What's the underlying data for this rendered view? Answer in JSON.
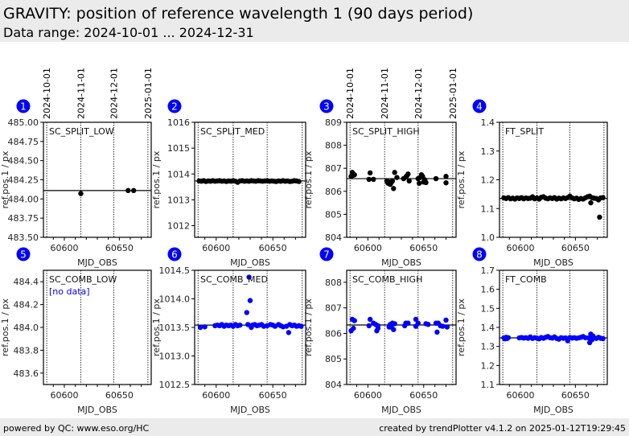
{
  "header": {
    "title": "GRAVITY: position of reference wavelength 1 (90 days period)",
    "subtitle": "Data range: 2024-10-01 ... 2024-12-31"
  },
  "footer": {
    "left": "powered by QC: www.eso.org/HC",
    "right": "created by trendPlotter v4.1.2 on 2025-01-12T19:29:45"
  },
  "colors": {
    "badge": "#0000ff",
    "split_points": "#000000",
    "comb_points": "#0000ff",
    "no_data_text": "#0000ff",
    "header_bg": "#ebebeb"
  },
  "chart_data": [
    {
      "type": "scatter",
      "badge": "1",
      "label": "SC_SPLIT_LOW",
      "xlabel": "MJD_OBS",
      "ylabel": "ref.pos.1 / px",
      "xlim": [
        60581,
        60679
      ],
      "ylim": [
        483.5,
        485.0
      ],
      "yticks": [
        "483.50",
        "483.75",
        "484.00",
        "484.25",
        "484.50",
        "484.75",
        "485.00"
      ],
      "xticks": [
        "60600",
        "60650"
      ],
      "date_ticks": [
        "2024-10-01",
        "2024-11-01",
        "2024-12-01",
        "2025-01-01"
      ],
      "date_mjd": [
        60584,
        60615,
        60645,
        60676
      ],
      "median": 484.11,
      "color": "#000000",
      "points": [
        [
          60615,
          484.07
        ],
        [
          60658,
          484.11
        ],
        [
          60663,
          484.11
        ]
      ]
    },
    {
      "type": "scatter",
      "badge": "2",
      "label": "SC_SPLIT_MED",
      "xlabel": "MJD_OBS",
      "ylabel": "ref.pos.1 / px",
      "xlim": [
        60581,
        60679
      ],
      "ylim": [
        1011.55,
        1016
      ],
      "yticks": [
        "1012",
        "1013",
        "1014",
        "1015",
        "1016"
      ],
      "xticks": [
        "60600",
        "60650"
      ],
      "date_mjd": [
        60584,
        60615,
        60645,
        60676
      ],
      "median": 1013.73,
      "color": "#000000",
      "points": [
        [
          60585,
          1013.73
        ],
        [
          60587,
          1013.72
        ],
        [
          60589,
          1013.74
        ],
        [
          60591,
          1013.71
        ],
        [
          60593,
          1013.73
        ],
        [
          60595,
          1013.72
        ],
        [
          60597,
          1013.74
        ],
        [
          60599,
          1013.72
        ],
        [
          60601,
          1013.73
        ],
        [
          60603,
          1013.74
        ],
        [
          60605,
          1013.72
        ],
        [
          60607,
          1013.73
        ],
        [
          60609,
          1013.71
        ],
        [
          60611,
          1013.73
        ],
        [
          60613,
          1013.72
        ],
        [
          60615,
          1013.74
        ],
        [
          60617,
          1013.72
        ],
        [
          60619,
          1013.68
        ],
        [
          60621,
          1013.73
        ],
        [
          60623,
          1013.74
        ],
        [
          60625,
          1013.72
        ],
        [
          60627,
          1013.73
        ],
        [
          60629,
          1013.72
        ],
        [
          60631,
          1013.74
        ],
        [
          60633,
          1013.73
        ],
        [
          60635,
          1013.72
        ],
        [
          60637,
          1013.74
        ],
        [
          60639,
          1013.73
        ],
        [
          60641,
          1013.72
        ],
        [
          60643,
          1013.73
        ],
        [
          60645,
          1013.74
        ],
        [
          60647,
          1013.72
        ],
        [
          60649,
          1013.73
        ],
        [
          60651,
          1013.72
        ],
        [
          60653,
          1013.71
        ],
        [
          60655,
          1013.73
        ],
        [
          60657,
          1013.72
        ],
        [
          60659,
          1013.74
        ],
        [
          60661,
          1013.72
        ],
        [
          60663,
          1013.73
        ],
        [
          60665,
          1013.71
        ],
        [
          60667,
          1013.72
        ],
        [
          60669,
          1013.74
        ],
        [
          60671,
          1013.73
        ],
        [
          60673,
          1013.71
        ]
      ]
    },
    {
      "type": "scatter",
      "badge": "3",
      "label": "SC_SPLIT_HIGH",
      "xlabel": "MJD_OBS",
      "ylabel": "ref.pos.1 / px",
      "xlim": [
        60581,
        60679
      ],
      "ylim": [
        804,
        809
      ],
      "yticks": [
        "804",
        "805",
        "806",
        "807",
        "808",
        "809"
      ],
      "xticks": [
        "60600",
        "60650"
      ],
      "date_ticks": [
        "2024-10-01",
        "2024-11-01",
        "2024-12-01",
        "2025-01-01"
      ],
      "date_mjd": [
        60584,
        60615,
        60645,
        60676
      ],
      "median": 806.55,
      "color": "#000000",
      "points": [
        [
          60585,
          806.65
        ],
        [
          60586,
          806.82
        ],
        [
          60587,
          806.7
        ],
        [
          60588,
          806.72
        ],
        [
          60601,
          806.52
        ],
        [
          60602,
          806.8
        ],
        [
          60605,
          806.52
        ],
        [
          60617,
          806.45
        ],
        [
          60618,
          806.35
        ],
        [
          60619,
          806.4
        ],
        [
          60620,
          806.3
        ],
        [
          60621,
          806.38
        ],
        [
          60622,
          806.45
        ],
        [
          60623,
          806.12
        ],
        [
          60624,
          806.82
        ],
        [
          60626,
          806.6
        ],
        [
          60632,
          806.55
        ],
        [
          60634,
          806.62
        ],
        [
          60635,
          806.68
        ],
        [
          60636,
          806.75
        ],
        [
          60637,
          806.45
        ],
        [
          60645,
          806.55
        ],
        [
          60646,
          806.35
        ],
        [
          60647,
          806.6
        ],
        [
          60648,
          806.72
        ],
        [
          60649,
          806.65
        ],
        [
          60650,
          806.4
        ],
        [
          60651,
          806.5
        ],
        [
          60652,
          806.38
        ],
        [
          60661,
          806.55
        ],
        [
          60670,
          806.65
        ],
        [
          60670,
          806.37
        ]
      ]
    },
    {
      "type": "scatter",
      "badge": "4",
      "label": "FT_SPLIT",
      "xlabel": "MJD_OBS",
      "ylabel": "ref.pos.1 / px",
      "xlim": [
        60581,
        60679
      ],
      "ylim": [
        1.0,
        1.4
      ],
      "yticks": [
        "1.0",
        "1.1",
        "1.2",
        "1.3",
        "1.4"
      ],
      "xticks": [
        "60600",
        "60650"
      ],
      "date_mjd": [
        60584,
        60615,
        60645,
        60676
      ],
      "median": 1.135,
      "color": "#000000",
      "points": [
        [
          60585,
          1.137
        ],
        [
          60587,
          1.135
        ],
        [
          60589,
          1.138
        ],
        [
          60591,
          1.134
        ],
        [
          60593,
          1.136
        ],
        [
          60595,
          1.133
        ],
        [
          60597,
          1.137
        ],
        [
          60599,
          1.135
        ],
        [
          60601,
          1.138
        ],
        [
          60603,
          1.134
        ],
        [
          60605,
          1.137
        ],
        [
          60607,
          1.135
        ],
        [
          60609,
          1.136
        ],
        [
          60611,
          1.141
        ],
        [
          60613,
          1.134
        ],
        [
          60615,
          1.137
        ],
        [
          60617,
          1.133
        ],
        [
          60619,
          1.139
        ],
        [
          60621,
          1.141
        ],
        [
          60623,
          1.136
        ],
        [
          60625,
          1.134
        ],
        [
          60627,
          1.137
        ],
        [
          60629,
          1.135
        ],
        [
          60631,
          1.138
        ],
        [
          60633,
          1.133
        ],
        [
          60635,
          1.136
        ],
        [
          60637,
          1.134
        ],
        [
          60639,
          1.137
        ],
        [
          60641,
          1.135
        ],
        [
          60643,
          1.138
        ],
        [
          60645,
          1.143
        ],
        [
          60647,
          1.137
        ],
        [
          60649,
          1.134
        ],
        [
          60651,
          1.136
        ],
        [
          60653,
          1.132
        ],
        [
          60655,
          1.135
        ],
        [
          60657,
          1.133
        ],
        [
          60659,
          1.137
        ],
        [
          60661,
          1.141
        ],
        [
          60663,
          1.143
        ],
        [
          60664,
          1.12
        ],
        [
          60665,
          1.138
        ],
        [
          60667,
          1.136
        ],
        [
          60669,
          1.135
        ],
        [
          60671,
          1.13
        ],
        [
          60672,
          1.07
        ],
        [
          60673,
          1.137
        ],
        [
          60675,
          1.138
        ]
      ]
    },
    {
      "type": "scatter",
      "badge": "5",
      "label": "SC_COMB_LOW",
      "no_data": "[no data]",
      "xlabel": "MJD_OBS",
      "ylabel": "ref.pos.1 / px",
      "xlim": [
        60581,
        60679
      ],
      "ylim": [
        483.5,
        484.5
      ],
      "yticks": [
        "483.6",
        "483.8",
        "484.0",
        "484.2",
        "484.4"
      ],
      "xticks": [
        "60600",
        "60650"
      ],
      "date_mjd": [
        60584,
        60615,
        60645,
        60676
      ],
      "color": "#0000ff",
      "points": []
    },
    {
      "type": "scatter",
      "badge": "6",
      "label": "SC_COMB_MED",
      "xlabel": "MJD_OBS",
      "ylabel": "ref.pos.1 / px",
      "xlim": [
        60581,
        60679
      ],
      "ylim": [
        1012.5,
        1014.5
      ],
      "yticks": [
        "1012.5",
        "1013.0",
        "1013.5",
        "1014.0",
        "1014.5"
      ],
      "xticks": [
        "60600",
        "60650"
      ],
      "date_mjd": [
        60584,
        60615,
        60645,
        60676
      ],
      "median": 1013.54,
      "color": "#0000ff",
      "points": [
        [
          60586,
          1013.5
        ],
        [
          60590,
          1013.51
        ],
        [
          60599,
          1013.53
        ],
        [
          60601,
          1013.54
        ],
        [
          60603,
          1013.53
        ],
        [
          60605,
          1013.55
        ],
        [
          60607,
          1013.52
        ],
        [
          60609,
          1013.54
        ],
        [
          60611,
          1013.53
        ],
        [
          60613,
          1013.54
        ],
        [
          60615,
          1013.52
        ],
        [
          60617,
          1013.55
        ],
        [
          60619,
          1013.53
        ],
        [
          60621,
          1013.54
        ],
        [
          60627,
          1013.76
        ],
        [
          60628,
          1013.55
        ],
        [
          60629,
          1014.38
        ],
        [
          60630,
          1013.97
        ],
        [
          60631,
          1013.5
        ],
        [
          60632,
          1013.54
        ],
        [
          60634,
          1013.55
        ],
        [
          60636,
          1013.53
        ],
        [
          60638,
          1013.54
        ],
        [
          60640,
          1013.55
        ],
        [
          60642,
          1013.52
        ],
        [
          60645,
          1013.53
        ],
        [
          60648,
          1013.55
        ],
        [
          60650,
          1013.54
        ],
        [
          60652,
          1013.52
        ],
        [
          60655,
          1013.55
        ],
        [
          60657,
          1013.53
        ],
        [
          60659,
          1013.51
        ],
        [
          60662,
          1013.52
        ],
        [
          60664,
          1013.41
        ],
        [
          60665,
          1013.55
        ],
        [
          60667,
          1013.53
        ],
        [
          60669,
          1013.54
        ],
        [
          60671,
          1013.52
        ],
        [
          60673,
          1013.53
        ],
        [
          60675,
          1013.52
        ]
      ]
    },
    {
      "type": "scatter",
      "badge": "7",
      "label": "SC_COMB_HIGH",
      "xlabel": "MJD_OBS",
      "ylabel": "ref.pos.1 / px",
      "xlim": [
        60581,
        60679
      ],
      "ylim": [
        804,
        808.47
      ],
      "yticks": [
        "804",
        "805",
        "806",
        "807",
        "808"
      ],
      "xticks": [
        "60600",
        "60650"
      ],
      "date_mjd": [
        60584,
        60615,
        60645,
        60676
      ],
      "median": 806.33,
      "color": "#0000ff",
      "points": [
        [
          60585,
          806.1
        ],
        [
          60586,
          806.55
        ],
        [
          60587,
          806.2
        ],
        [
          60588,
          806.5
        ],
        [
          60601,
          806.3
        ],
        [
          60602,
          806.55
        ],
        [
          60605,
          806.4
        ],
        [
          60607,
          806.35
        ],
        [
          60608,
          806.1
        ],
        [
          60609,
          806.3
        ],
        [
          60609,
          806.2
        ],
        [
          60619,
          806.25
        ],
        [
          60620,
          806.35
        ],
        [
          60621,
          806.25
        ],
        [
          60622,
          806.4
        ],
        [
          60623,
          806.15
        ],
        [
          60624,
          806.38
        ],
        [
          60633,
          806.3
        ],
        [
          60634,
          806.4
        ],
        [
          60636,
          806.4
        ],
        [
          60643,
          806.55
        ],
        [
          60643,
          806.28
        ],
        [
          60645,
          806.4
        ],
        [
          60652,
          806.38
        ],
        [
          60654,
          806.35
        ],
        [
          60661,
          806.4
        ],
        [
          60662,
          806.05
        ],
        [
          60663,
          806.4
        ],
        [
          60665,
          806.3
        ],
        [
          60667,
          806.28
        ],
        [
          60670,
          806.52
        ],
        [
          60671,
          806.25
        ]
      ]
    },
    {
      "type": "scatter",
      "badge": "8",
      "label": "FT_COMB",
      "xlabel": "MJD_OBS",
      "ylabel": "ref.pos.1 / px",
      "xlim": [
        60581,
        60679
      ],
      "ylim": [
        1.1,
        1.7
      ],
      "yticks": [
        "1.1",
        "1.2",
        "1.3",
        "1.4",
        "1.5",
        "1.6",
        "1.7"
      ],
      "xticks": [
        "60600",
        "60650"
      ],
      "date_mjd": [
        60584,
        60615,
        60645,
        60676
      ],
      "median": 1.345,
      "color": "#0000ff",
      "points": [
        [
          60585,
          1.345
        ],
        [
          60586,
          1.34
        ],
        [
          60587,
          1.348
        ],
        [
          60588,
          1.342
        ],
        [
          60589,
          1.346
        ],
        [
          60599,
          1.345
        ],
        [
          60601,
          1.347
        ],
        [
          60603,
          1.344
        ],
        [
          60605,
          1.346
        ],
        [
          60607,
          1.343
        ],
        [
          60609,
          1.35
        ],
        [
          60611,
          1.342
        ],
        [
          60613,
          1.346
        ],
        [
          60615,
          1.344
        ],
        [
          60617,
          1.34
        ],
        [
          60619,
          1.347
        ],
        [
          60621,
          1.343
        ],
        [
          60623,
          1.348
        ],
        [
          60625,
          1.352
        ],
        [
          60627,
          1.346
        ],
        [
          60629,
          1.344
        ],
        [
          60631,
          1.35
        ],
        [
          60633,
          1.342
        ],
        [
          60635,
          1.338
        ],
        [
          60637,
          1.346
        ],
        [
          60639,
          1.343
        ],
        [
          60641,
          1.345
        ],
        [
          60643,
          1.33
        ],
        [
          60645,
          1.347
        ],
        [
          60647,
          1.344
        ],
        [
          60649,
          1.346
        ],
        [
          60651,
          1.343
        ],
        [
          60653,
          1.345
        ],
        [
          60655,
          1.348
        ],
        [
          60657,
          1.352
        ],
        [
          60659,
          1.346
        ],
        [
          60662,
          1.345
        ],
        [
          60663,
          1.32
        ],
        [
          60664,
          1.365
        ],
        [
          60665,
          1.335
        ],
        [
          60666,
          1.355
        ],
        [
          60667,
          1.345
        ],
        [
          60669,
          1.342
        ],
        [
          60671,
          1.348
        ],
        [
          60673,
          1.343
        ],
        [
          60675,
          1.341
        ]
      ]
    }
  ]
}
